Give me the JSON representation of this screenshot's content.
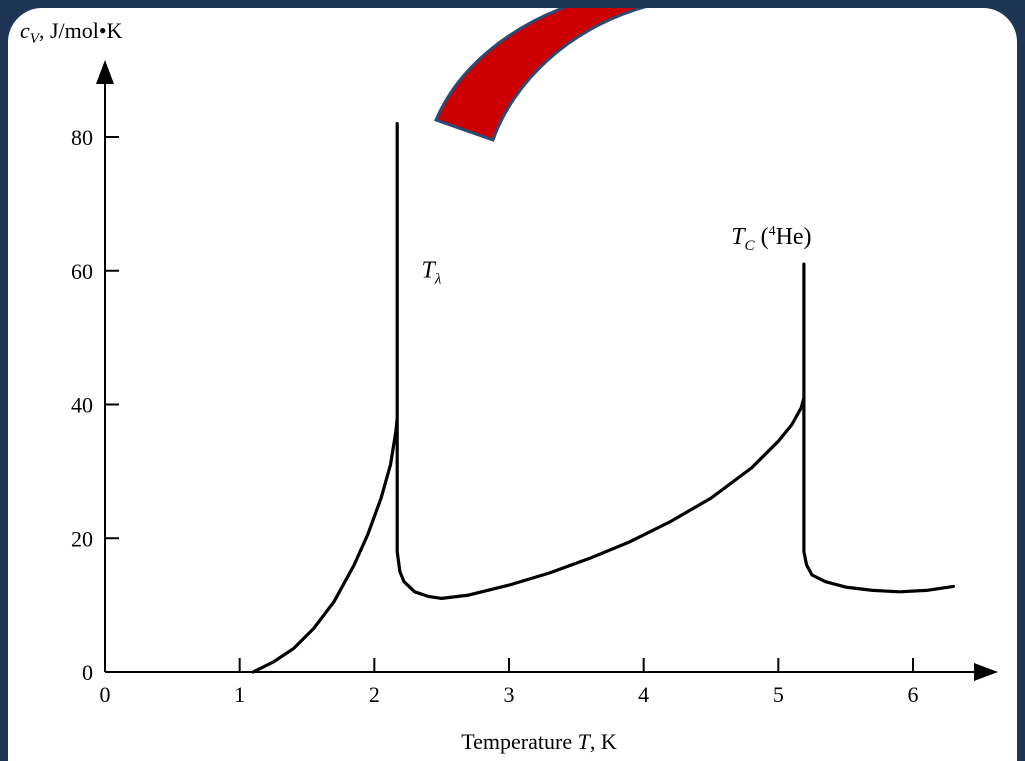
{
  "chart_data": {
    "type": "line",
    "xlabel_prefix": "Temperature ",
    "xlabel_var": "T",
    "xlabel_suffix": ", K",
    "ylabel_var": "c",
    "ylabel_sub": "V",
    "ylabel_suffix": ", J/mol•K",
    "xlim": [
      0,
      6.3
    ],
    "ylim": [
      0,
      80
    ],
    "x_ticks": [
      0,
      1,
      2,
      3,
      4,
      5,
      6
    ],
    "x_tick_labels": [
      "0",
      "1",
      "2",
      "3",
      "4",
      "5",
      "6"
    ],
    "y_ticks": [
      0,
      20,
      40,
      60,
      80
    ],
    "y_tick_labels": [
      "0",
      "20",
      "40",
      "60",
      "80"
    ],
    "grid": false,
    "series": [
      {
        "x": [
          1.1,
          1.25,
          1.4,
          1.55,
          1.7,
          1.85,
          1.95,
          2.05,
          2.12,
          2.16,
          2.17,
          2.17,
          2.17,
          2.17,
          2.19,
          2.22,
          2.3,
          2.4,
          2.5,
          2.7,
          3.0,
          3.3,
          3.6,
          3.9,
          4.2,
          4.5,
          4.8,
          5.0,
          5.1,
          5.17,
          5.19,
          5.19,
          5.19,
          5.21,
          5.25,
          5.35,
          5.5,
          5.7,
          5.9,
          6.1,
          6.3
        ],
        "y": [
          0,
          1.5,
          3.5,
          6.5,
          10.5,
          16,
          20.5,
          26,
          31,
          36,
          38,
          82,
          18.5,
          18,
          15,
          13.5,
          12,
          11.3,
          11,
          11.5,
          13,
          14.8,
          17,
          19.5,
          22.5,
          26,
          30.5,
          34.5,
          37,
          39.5,
          41,
          61,
          18,
          16,
          14.5,
          13.5,
          12.7,
          12.2,
          12,
          12.2,
          12.8
        ]
      }
    ],
    "annotations": [
      {
        "var": "T",
        "sub": "λ",
        "x": 2.35,
        "y": 59
      },
      {
        "var": "T",
        "sub": "C",
        "rest_open": " (",
        "sup": "4",
        "rest": "He)",
        "x": 4.65,
        "y": 64
      }
    ]
  },
  "colors": {
    "background": "#1f3556",
    "panel": "#ffffff",
    "arrow_fill": "#cc0000",
    "arrow_stroke": "#2d4a73"
  },
  "decoration": {
    "arrow": "curved-red-arrow"
  }
}
